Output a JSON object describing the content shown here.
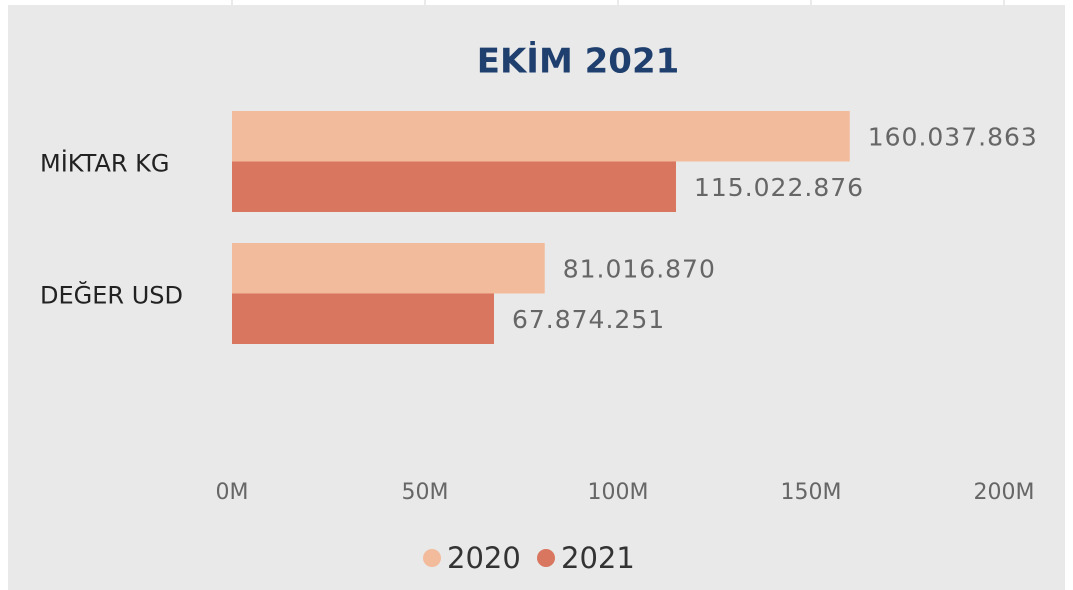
{
  "chart_data": {
    "type": "bar",
    "orientation": "horizontal",
    "title": "EKİM 2021",
    "categories": [
      "MİKTAR KG",
      "DEĞER USD"
    ],
    "series": [
      {
        "name": "2020",
        "color": "#f2bb9c",
        "values": [
          160037863,
          81016870
        ],
        "value_labels": [
          "160.037.863",
          "81.016.870"
        ]
      },
      {
        "name": "2021",
        "color": "#d9765f",
        "values": [
          115022876,
          67874251
        ],
        "value_labels": [
          "115.022.876",
          "67.874.251"
        ]
      }
    ],
    "xlim": [
      0,
      200000000
    ],
    "xticks": [
      {
        "value": 0,
        "label": "0M"
      },
      {
        "value": 50000000,
        "label": "50M"
      },
      {
        "value": 100000000,
        "label": "100M"
      },
      {
        "value": 150000000,
        "label": "150M"
      },
      {
        "value": 200000000,
        "label": "200M"
      }
    ],
    "grid": true,
    "legend": "bottom"
  }
}
